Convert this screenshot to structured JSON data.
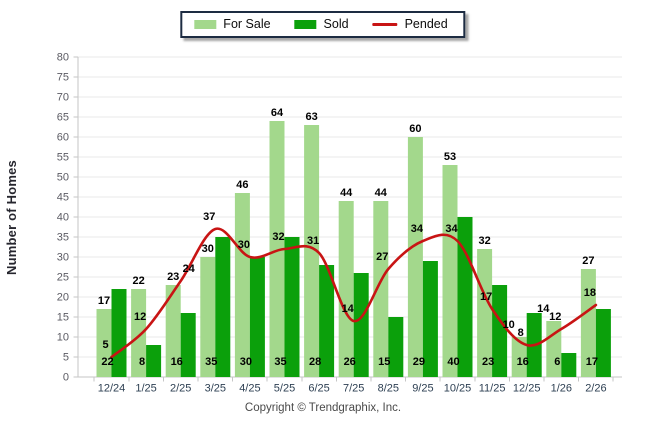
{
  "legend": {
    "items": [
      {
        "label": "For Sale",
        "color": "#a3d88c",
        "swatch": "bar"
      },
      {
        "label": "Sold",
        "color": "#0ba00b",
        "swatch": "bar"
      },
      {
        "label": "Pended",
        "color": "#c81414",
        "swatch": "line"
      }
    ]
  },
  "footer": {
    "copyright": "Copyright © Trendgraphix, Inc."
  },
  "chart_data": {
    "type": "bar",
    "title": "",
    "categories": [
      "12/24",
      "1/25",
      "2/25",
      "3/25",
      "4/25",
      "5/25",
      "6/25",
      "7/25",
      "8/25",
      "9/25",
      "10/25",
      "11/25",
      "12/25",
      "1/26",
      "2/26"
    ],
    "series": [
      {
        "name": "For Sale",
        "type": "bar",
        "color": "#a3d88c",
        "values": [
          17,
          22,
          23,
          30,
          46,
          64,
          63,
          44,
          44,
          60,
          53,
          32,
          10,
          14,
          27
        ]
      },
      {
        "name": "Sold",
        "type": "bar",
        "color": "#0ba00b",
        "values": [
          22,
          8,
          16,
          35,
          30,
          35,
          28,
          26,
          15,
          29,
          40,
          23,
          16,
          6,
          17
        ]
      },
      {
        "name": "Pended",
        "type": "line",
        "color": "#c81414",
        "values": [
          5,
          12,
          24,
          37,
          30,
          32,
          31,
          14,
          27,
          34,
          34,
          17,
          8,
          12,
          18
        ]
      }
    ],
    "xlabel": "",
    "ylabel": "Number of Homes",
    "ylim": [
      0,
      80
    ],
    "ytick_step": 5,
    "grid": true,
    "legend_position": "top-center",
    "value_labels": true,
    "axis_colors": {
      "grid": "#e9e9e9",
      "axis": "#c6c6c6",
      "y_tick_text": "#5b5b63",
      "x_tick_text": "#2e4053",
      "value_text": "#000000"
    }
  }
}
